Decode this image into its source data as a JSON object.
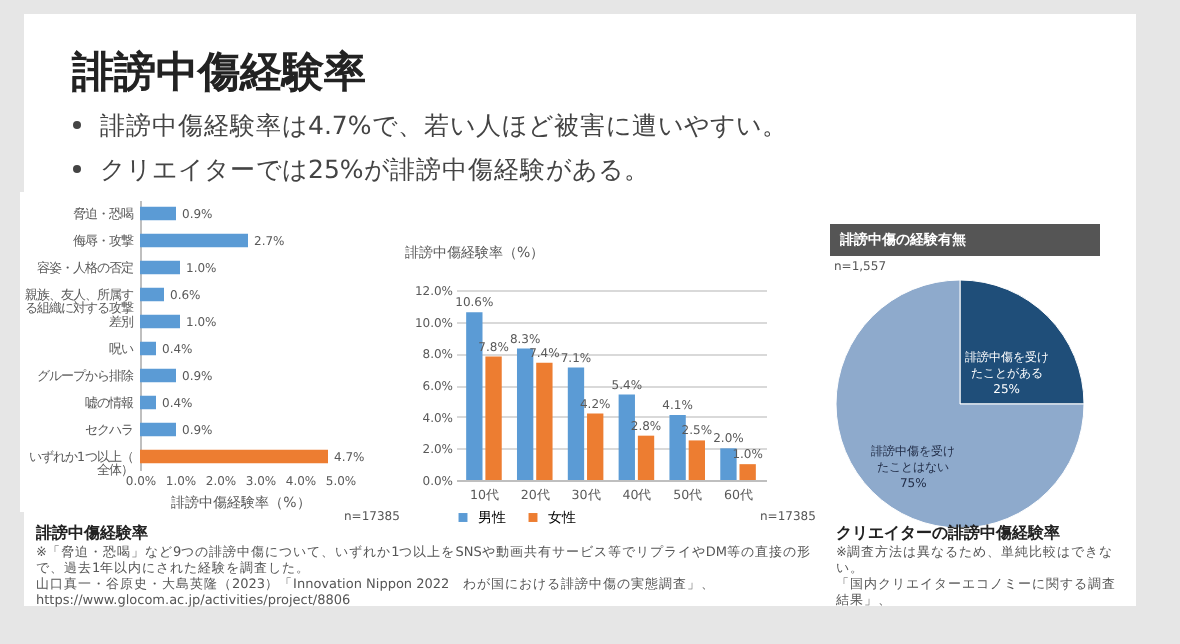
{
  "chart_data": [
    {
      "type": "other",
      "title": "誹謗中傷経験率",
      "annotations": [
        "誹謗中傷経験率は4.7%で、若い人ほど被害に遭いやすい。",
        "クリエイターでは25%が誹謗中傷経験がある。"
      ]
    },
    {
      "type": "bar",
      "orientation": "horizontal",
      "xlabel": "誹謗中傷経験率（%）",
      "categories": [
        "脅迫・恐喝",
        "侮辱・攻撃",
        "容姿・人格の否定",
        "親族、友人、所属する組織に対する攻撃",
        "差別",
        "呪い",
        "グループから排除",
        "嘘の情報",
        "セクハラ",
        "いずれか1つ以上（全体）"
      ],
      "values": [
        0.9,
        2.7,
        1.0,
        0.6,
        1.0,
        0.4,
        0.9,
        0.4,
        0.9,
        4.7
      ],
      "colors": [
        "#5b9bd5",
        "#5b9bd5",
        "#5b9bd5",
        "#5b9bd5",
        "#5b9bd5",
        "#5b9bd5",
        "#5b9bd5",
        "#5b9bd5",
        "#5b9bd5",
        "#ed7d31"
      ],
      "value_labels": [
        "0.9%",
        "2.7%",
        "1.0%",
        "0.6%",
        "1.0%",
        "0.4%",
        "0.9%",
        "0.4%",
        "0.9%",
        "4.7%"
      ],
      "xlim": [
        0,
        5
      ],
      "xticks": [
        {
          "value": 0,
          "label": "0.0%"
        },
        {
          "value": 1,
          "label": "1.0%"
        },
        {
          "value": 2,
          "label": "2.0%"
        },
        {
          "value": 3,
          "label": "3.0%"
        },
        {
          "value": 4,
          "label": "4.0%"
        },
        {
          "value": 5,
          "label": "5.0%"
        }
      ],
      "annotations": [
        "n=17385",
        "誹謗中傷経験率",
        "※「脅迫・恐喝」など9つの誹謗中傷について、いずれか1つ以上をSNSや動画共有サービス等でリプライやDM等の直接の形で、過去1年以内にされた経験を調査した。",
        "山口真一・谷原史・大島英隆（2023）「Innovation Nippon 2022　わが国における誹謗中傷の実態調査」、",
        "https://www.glocom.ac.jp/activities/project/8806"
      ]
    },
    {
      "type": "bar",
      "ylabel": "誹謗中傷経験率（%）",
      "categories": [
        "10代",
        "20代",
        "30代",
        "40代",
        "50代",
        "60代"
      ],
      "series": [
        {
          "name": "男性",
          "color": "#5b9bd5",
          "values": [
            10.6,
            8.3,
            7.1,
            5.4,
            4.1,
            2.0
          ],
          "value_labels": [
            "10.6%",
            "8.3%",
            "7.1%",
            "5.4%",
            "4.1%",
            "2.0%"
          ]
        },
        {
          "name": "女性",
          "color": "#ed7d31",
          "values": [
            7.8,
            7.4,
            4.2,
            2.8,
            2.5,
            1.0
          ],
          "value_labels": [
            "7.8%",
            "7.4%",
            "4.2%",
            "2.8%",
            "2.5%",
            "1.0%"
          ]
        }
      ],
      "ylim": [
        0,
        12
      ],
      "yticks": [
        {
          "value": 0,
          "label": "0.0%"
        },
        {
          "value": 2,
          "label": "2.0%"
        },
        {
          "value": 4,
          "label": "4.0%"
        },
        {
          "value": 6,
          "label": "6.0%"
        },
        {
          "value": 8,
          "label": "8.0%"
        },
        {
          "value": 10,
          "label": "10.0%"
        },
        {
          "value": 12,
          "label": "12.0%"
        }
      ],
      "grid": "y",
      "legend": "bottom",
      "annotations": [
        "n=17385"
      ]
    },
    {
      "type": "pie",
      "title": "誹謗中傷の経験有無",
      "categories": [
        "誹謗中傷を受けたことがある",
        "誹謗中傷を受けたことはない"
      ],
      "values": [
        25,
        75
      ],
      "colors": [
        "#1f4e79",
        "#8eaacc"
      ],
      "value_labels": [
        "25%",
        "75%"
      ],
      "annotations": [
        "n=1,557",
        "クリエイターの誹謗中傷経験率",
        "※調査方法は異なるため、単純比較はできない。",
        "「国内クリエイターエコノミーに関する調査結果」、"
      ]
    }
  ]
}
